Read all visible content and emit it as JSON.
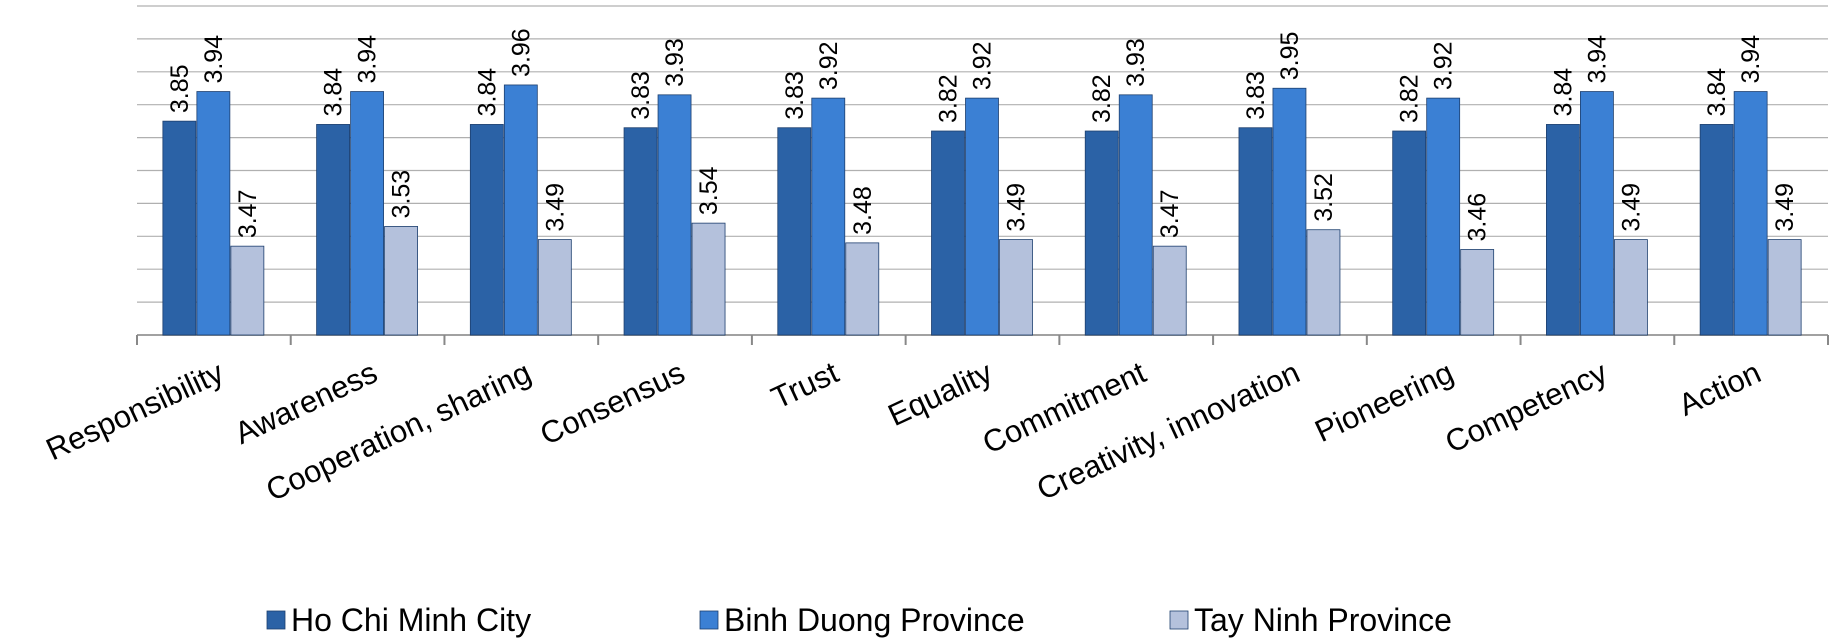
{
  "chart_data": {
    "type": "bar",
    "categories": [
      "Responsibility",
      "Awareness",
      "Cooperation, sharing",
      "Consensus",
      "Trust",
      "Equality",
      "Commitment",
      "Creativity, innovation",
      "Pioneering",
      "Competency",
      "Action"
    ],
    "series": [
      {
        "name": "Ho Chi Minh City",
        "color": "#2b62a6",
        "values": [
          3.85,
          3.84,
          3.84,
          3.83,
          3.83,
          3.82,
          3.82,
          3.83,
          3.82,
          3.84,
          3.84
        ]
      },
      {
        "name": "Binh Duong Province",
        "color": "#3b80d4",
        "values": [
          3.94,
          3.94,
          3.96,
          3.93,
          3.92,
          3.92,
          3.93,
          3.95,
          3.92,
          3.94,
          3.94
        ]
      },
      {
        "name": "Tay Ninh Province",
        "color": "#b4c1dc",
        "values": [
          3.47,
          3.53,
          3.49,
          3.54,
          3.48,
          3.49,
          3.47,
          3.52,
          3.46,
          3.49,
          3.49
        ]
      }
    ],
    "ylim": [
      3.2,
      4.2
    ],
    "yticks": [
      3.2,
      3.3,
      3.4,
      3.5,
      3.6,
      3.7,
      3.8,
      3.9,
      4.0,
      4.1,
      4.2
    ],
    "grid": true
  }
}
